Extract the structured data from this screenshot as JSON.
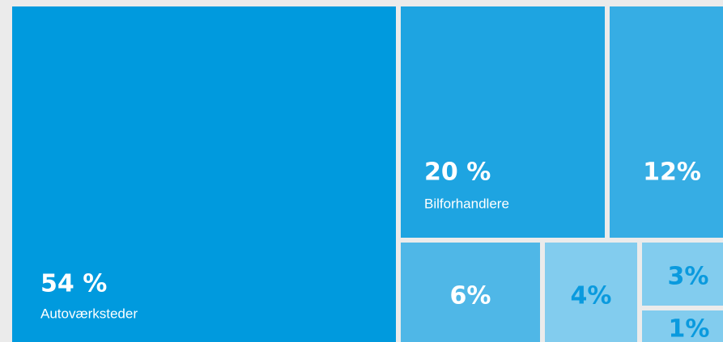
{
  "chart_data": {
    "type": "treemap",
    "categories": [
      "Autoværksteder",
      "Bilforhandlere",
      null,
      null,
      null,
      null,
      null
    ],
    "values": [
      54,
      20,
      12,
      6,
      4,
      3,
      1
    ],
    "value_labels": [
      "54 %",
      "20 %",
      "12%",
      "6%",
      "4%",
      "3%",
      "1%"
    ],
    "colors": [
      "#009ade",
      "#1ea4e1",
      "#36ade4",
      "#4fb7e7",
      "#82ccee",
      "#82ccee",
      "#82ccee"
    ],
    "label_colors": [
      "#ffffff",
      "#ffffff",
      "#ffffff",
      "#ffffff",
      "#0a9ade",
      "#0a9ade",
      "#0a9ade"
    ]
  }
}
